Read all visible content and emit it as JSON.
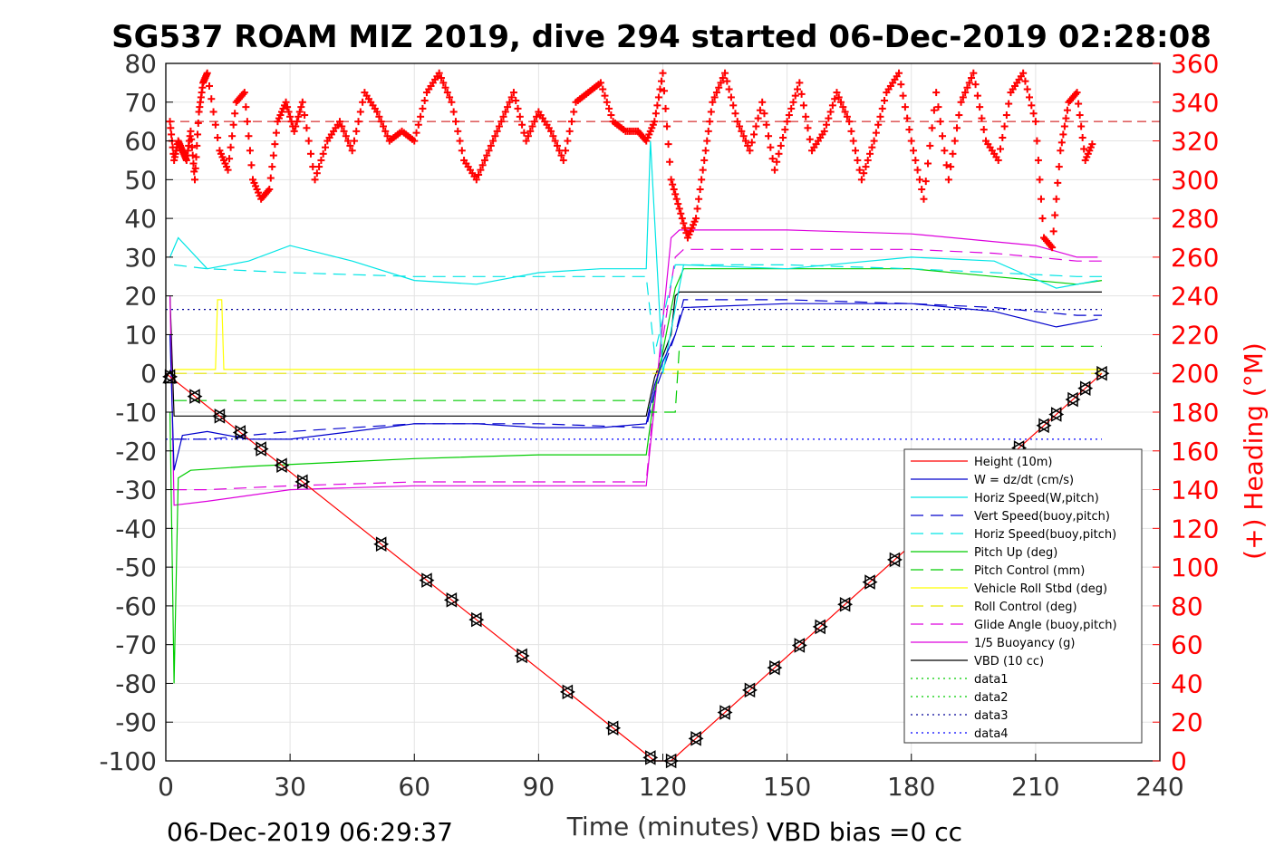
{
  "chart_data": {
    "type": "line",
    "title": "SG537 ROAM MIZ 2019, dive 294 started 06-Dec-2019 02:28:08",
    "xlabel": "Time (minutes)",
    "ylabel_right": "(+) Heading (°M)",
    "xlim": [
      0,
      240
    ],
    "ylim": [
      -100,
      80
    ],
    "ylim_right": [
      0,
      360
    ],
    "xticks": [
      "0",
      "30",
      "60",
      "90",
      "120",
      "150",
      "180",
      "210",
      "240"
    ],
    "yticks": [
      "-100",
      "-90",
      "-80",
      "-70",
      "-60",
      "-50",
      "-40",
      "-30",
      "-20",
      "-10",
      "0",
      "10",
      "20",
      "30",
      "40",
      "50",
      "60",
      "70",
      "80"
    ],
    "yticks_right": [
      "0",
      "20",
      "40",
      "60",
      "80",
      "100",
      "120",
      "140",
      "160",
      "180",
      "200",
      "220",
      "240",
      "260",
      "280",
      "300",
      "320",
      "340",
      "360"
    ],
    "grid": true,
    "legend_position": "lower-right",
    "footer_left": "06-Dec-2019 06:29:37",
    "footer_right": "VBD bias =0 cc",
    "colors": {
      "height": "#ff0000",
      "w": "#0000cc",
      "horiz_speed": "#00e5e5",
      "vert_speed_buoy": "#0000cc",
      "horiz_speed_buoy": "#00e5e5",
      "pitch_up": "#00cc00",
      "pitch_control": "#00cc00",
      "roll": "#ffff00",
      "roll_control": "#e6e600",
      "glide_angle": "#dd00dd",
      "buoyancy": "#dd00dd",
      "vbd": "#000000",
      "data1": "#00cc00",
      "data2": "#00cc00",
      "data3": "#000099",
      "data4": "#0000ff",
      "heading": "#ff0000"
    },
    "legend": [
      {
        "label": "Height (10m)",
        "style": "solid",
        "color": "#ff0000"
      },
      {
        "label": "W = dz/dt (cm/s)",
        "style": "solid",
        "color": "#0000cc"
      },
      {
        "label": "Horiz Speed(W,pitch)",
        "style": "solid",
        "color": "#00e5e5"
      },
      {
        "label": "Vert Speed(buoy,pitch)",
        "style": "dashed",
        "color": "#0000cc"
      },
      {
        "label": "Horiz Speed(buoy,pitch)",
        "style": "dashed",
        "color": "#00e5e5"
      },
      {
        "label": "Pitch Up (deg)",
        "style": "solid",
        "color": "#00cc00"
      },
      {
        "label": "Pitch Control (mm)",
        "style": "dashed",
        "color": "#00cc00"
      },
      {
        "label": "Vehicle Roll Stbd (deg)",
        "style": "solid",
        "color": "#ffff00"
      },
      {
        "label": "Roll Control (deg)",
        "style": "dashed",
        "color": "#e6e600"
      },
      {
        "label": "Glide Angle (buoy,pitch)",
        "style": "dashed",
        "color": "#dd00dd"
      },
      {
        "label": "1/5 Buoyancy (g)",
        "style": "solid",
        "color": "#dd00dd"
      },
      {
        "label": "VBD (10 cc)",
        "style": "solid",
        "color": "#000000"
      },
      {
        "label": "data1",
        "style": "dotted",
        "color": "#00cc00"
      },
      {
        "label": "data2",
        "style": "dotted",
        "color": "#00cc00"
      },
      {
        "label": "data3",
        "style": "dotted",
        "color": "#000099"
      },
      {
        "label": "data4",
        "style": "dotted",
        "color": "#0000ff"
      }
    ],
    "series": [
      {
        "name": "Height (10m)",
        "key": "height",
        "x": [
          0,
          118,
          119,
          122,
          226
        ],
        "y": [
          0,
          -100,
          -100,
          -100,
          0
        ]
      },
      {
        "name": "W = dz/dt (cm/s)",
        "key": "w",
        "x": [
          1,
          2,
          4,
          10,
          20,
          30,
          45,
          60,
          75,
          90,
          105,
          116,
          118,
          120,
          123,
          125,
          150,
          180,
          200,
          215,
          225
        ],
        "y": [
          10,
          -25,
          -16,
          -15,
          -17,
          -17,
          -15,
          -13,
          -13,
          -14,
          -14,
          -13,
          -3,
          3,
          10,
          17,
          18,
          18,
          16,
          12,
          14
        ]
      },
      {
        "name": "Horiz Speed(W,pitch)",
        "key": "horiz_speed",
        "x": [
          1,
          3,
          10,
          20,
          30,
          45,
          60,
          75,
          90,
          105,
          116,
          117,
          120,
          125,
          150,
          180,
          200,
          215,
          225
        ],
        "y": [
          30,
          35,
          27,
          29,
          33,
          29,
          24,
          23,
          26,
          27,
          27,
          60,
          0,
          28,
          27,
          30,
          29,
          22,
          24
        ]
      },
      {
        "name": "Vert Speed(buoy,pitch)",
        "key": "vert_speed_buoy",
        "x": [
          2,
          10,
          30,
          60,
          90,
          116,
          118,
          123,
          125,
          150,
          180,
          200,
          220,
          226
        ],
        "y": [
          -17,
          -17,
          -15,
          -13,
          -13,
          -14,
          -5,
          10,
          19,
          19,
          18,
          17,
          15,
          15
        ]
      },
      {
        "name": "Horiz Speed(buoy,pitch)",
        "key": "horiz_speed_buoy",
        "x": [
          2,
          10,
          30,
          60,
          90,
          116,
          118,
          123,
          125,
          150,
          180,
          200,
          220,
          226
        ],
        "y": [
          28,
          27,
          26,
          25,
          25,
          25,
          5,
          28,
          28,
          28,
          27,
          26,
          25,
          25
        ]
      },
      {
        "name": "Pitch Up (deg)",
        "key": "pitch_up",
        "x": [
          1,
          2,
          3,
          6,
          20,
          40,
          60,
          90,
          116,
          118,
          123,
          125,
          150,
          180,
          200,
          220,
          226
        ],
        "y": [
          -10,
          -80,
          -27,
          -25,
          -24,
          -23,
          -22,
          -21,
          -21,
          -5,
          22,
          27,
          27,
          27,
          25,
          23,
          24
        ]
      },
      {
        "name": "Pitch Control (mm)",
        "key": "pitch_control",
        "x": [
          2,
          116,
          117,
          123,
          124,
          226
        ],
        "y": [
          -7,
          -7,
          -10,
          -10,
          7,
          7
        ]
      },
      {
        "name": "Vehicle Roll Stbd (deg)",
        "key": "roll",
        "x": [
          2,
          12,
          12.5,
          13.5,
          14,
          40,
          60,
          90,
          116,
          121,
          150,
          180,
          210,
          226
        ],
        "y": [
          1,
          1,
          19,
          19,
          1,
          1,
          1,
          1,
          1,
          1,
          1,
          1,
          1,
          1
        ]
      },
      {
        "name": "Roll Control (deg)",
        "key": "roll_control",
        "x": [
          2,
          226
        ],
        "y": [
          0,
          0
        ]
      },
      {
        "name": "Glide Angle (buoy,pitch)",
        "key": "glide_angle",
        "x": [
          2,
          10,
          30,
          60,
          90,
          116,
          118,
          123,
          125,
          150,
          180,
          200,
          220,
          226
        ],
        "y": [
          -30,
          -30,
          -29,
          -28,
          -28,
          -28,
          -5,
          30,
          32,
          32,
          32,
          31,
          29,
          29
        ]
      },
      {
        "name": "1/5 Buoyancy (g)",
        "key": "buoyancy",
        "x": [
          1,
          2,
          10,
          30,
          60,
          90,
          116,
          118,
          122,
          124,
          150,
          180,
          210,
          220,
          225
        ],
        "y": [
          20,
          -34,
          -33,
          -30,
          -29,
          -29,
          -29,
          -8,
          35,
          37,
          37,
          36,
          33,
          30,
          30
        ]
      },
      {
        "name": "VBD (10 cc)",
        "key": "vbd",
        "x": [
          1,
          2,
          116,
          118,
          122,
          123,
          124,
          226
        ],
        "y": [
          20,
          -11,
          -11,
          -1,
          10,
          20,
          21,
          21
        ]
      },
      {
        "name": "data3",
        "key": "data3",
        "x": [
          0,
          226
        ],
        "y": [
          16.5,
          16.5
        ]
      },
      {
        "name": "data4",
        "key": "data4",
        "x": [
          0,
          226
        ],
        "y": [
          -17,
          -17
        ]
      }
    ],
    "heading_marks": {
      "desired_heading": 330,
      "x": [
        1,
        2,
        3,
        4,
        5,
        6,
        7,
        8,
        9,
        10,
        13,
        15,
        17,
        19,
        21,
        23,
        25,
        27,
        29,
        31,
        33,
        36,
        39,
        42,
        45,
        48,
        51,
        54,
        57,
        60,
        63,
        66,
        69,
        72,
        75,
        78,
        81,
        84,
        87,
        90,
        93,
        96,
        99,
        102,
        105,
        108,
        111,
        114,
        116,
        118,
        120,
        122,
        124,
        126,
        128,
        130,
        132,
        135,
        138,
        141,
        144,
        147,
        150,
        153,
        156,
        159,
        162,
        165,
        168,
        171,
        174,
        177,
        180,
        183,
        186,
        189,
        192,
        195,
        198,
        201,
        204,
        207,
        210,
        212,
        214,
        216,
        218,
        220,
        222,
        224
      ],
      "y": [
        330,
        310,
        320,
        315,
        310,
        325,
        300,
        335,
        350,
        355,
        315,
        305,
        340,
        345,
        300,
        290,
        295,
        330,
        340,
        325,
        340,
        300,
        320,
        330,
        315,
        345,
        335,
        320,
        325,
        320,
        345,
        355,
        340,
        310,
        300,
        315,
        330,
        345,
        320,
        335,
        325,
        310,
        340,
        345,
        350,
        330,
        325,
        325,
        320,
        330,
        355,
        300,
        285,
        270,
        280,
        310,
        340,
        355,
        330,
        315,
        340,
        305,
        330,
        350,
        315,
        325,
        345,
        330,
        300,
        320,
        345,
        355,
        320,
        290,
        345,
        300,
        340,
        355,
        320,
        310,
        345,
        355,
        330,
        270,
        265,
        315,
        340,
        345,
        310,
        320
      ]
    },
    "markers": {
      "down_x": [
        1,
        7,
        13,
        18,
        23,
        28,
        33,
        52,
        63,
        69,
        75,
        86,
        97,
        108,
        117
      ],
      "up_x": [
        122,
        128,
        135,
        141,
        147,
        153,
        158,
        164,
        170,
        176,
        196,
        201,
        206,
        212,
        215,
        219,
        222,
        226
      ]
    }
  }
}
